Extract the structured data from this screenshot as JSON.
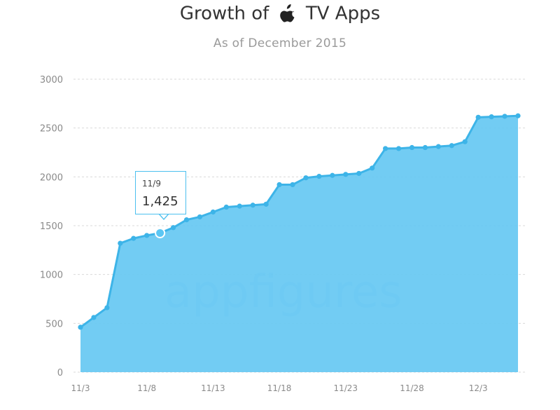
{
  "chart_data": {
    "type": "area",
    "title_prefix": "Growth of",
    "title_suffix": "TV Apps",
    "title_icon": "apple-logo-icon",
    "subtitle": "As of December 2015",
    "watermark": "appfigures",
    "xlabel": "",
    "ylabel": "",
    "ylim": [
      0,
      3000
    ],
    "yticks": [
      "0",
      "500",
      "1000",
      "1500",
      "2000",
      "2500",
      "3000"
    ],
    "xticks": [
      "11/3",
      "11/8",
      "11/13",
      "11/18",
      "11/23",
      "11/28",
      "12/3"
    ],
    "grid": true,
    "legend": "none",
    "series": [
      {
        "x": [
          "11/3",
          "11/4",
          "11/5",
          "11/6",
          "11/7",
          "11/8",
          "11/9",
          "11/10",
          "11/11",
          "11/12",
          "11/13",
          "11/14",
          "11/15",
          "11/16",
          "11/17",
          "11/18",
          "11/19",
          "11/20",
          "11/21",
          "11/22",
          "11/23",
          "11/24",
          "11/25",
          "11/26",
          "11/27",
          "11/28",
          "11/29",
          "11/30",
          "12/1",
          "12/2",
          "12/3",
          "12/4",
          "12/5",
          "12/6"
        ],
        "values": [
          460,
          560,
          660,
          1320,
          1370,
          1400,
          1425,
          1480,
          1560,
          1590,
          1640,
          1690,
          1700,
          1710,
          1720,
          1920,
          1920,
          1990,
          2005,
          2015,
          2025,
          2035,
          2090,
          2290,
          2290,
          2300,
          2300,
          2310,
          2320,
          2360,
          2610,
          2615,
          2620,
          2625
        ]
      }
    ],
    "colors": {
      "fill": "#66c8f2",
      "line": "#3db4e8",
      "grid": "#d9d9d9"
    },
    "tooltip": {
      "date": "11/9",
      "value": "1,425",
      "index": 6
    }
  }
}
